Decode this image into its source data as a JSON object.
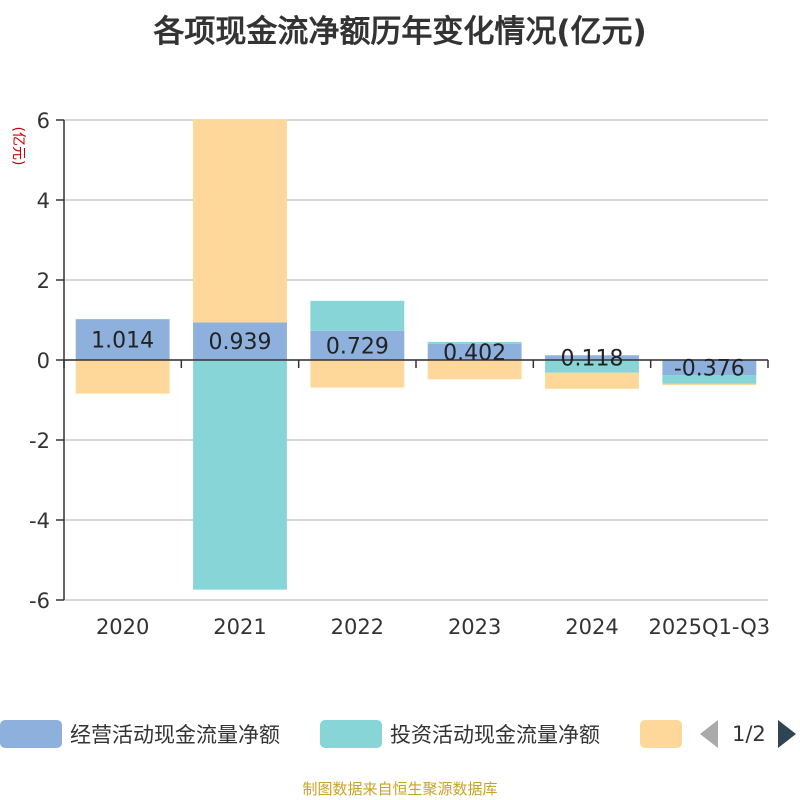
{
  "title": "各项现金流净额历年变化情况(亿元)",
  "source": "制图数据来自恒生聚源数据库",
  "legend": {
    "items": [
      {
        "label": "经营活动现金流量净额",
        "color": "#8eb0dc"
      },
      {
        "label": "投资活动现金流量净额",
        "color": "#88d5d8"
      },
      {
        "label": "",
        "color": "#fdd89a"
      }
    ],
    "page": "1/2"
  },
  "chart_data": {
    "type": "bar",
    "stacked": true,
    "ylabel": "(亿元)",
    "ylim": [
      -6,
      6
    ],
    "yticks": [
      6,
      4,
      2,
      0,
      -2,
      -4,
      -6
    ],
    "categories": [
      "2020",
      "2021",
      "2022",
      "2023",
      "2024",
      "2025Q1-Q3"
    ],
    "series": [
      {
        "name": "经营活动现金流量净额",
        "color": "#8eb0dc",
        "values": [
          1.014,
          0.939,
          0.729,
          0.402,
          0.118,
          -0.376
        ]
      },
      {
        "name": "投资活动现金流量净额",
        "color": "#88d5d8",
        "values": [
          0.01,
          -5.74,
          0.75,
          0.05,
          -0.32,
          -0.22
        ]
      },
      {
        "name": "",
        "color": "#fdd89a",
        "values": [
          -0.84,
          5.07,
          -0.69,
          -0.48,
          -0.4,
          -0.03
        ]
      }
    ],
    "data_labels": [
      "1.014",
      "0.939",
      "0.729",
      "0.402",
      "0.118",
      "-0.376"
    ]
  }
}
